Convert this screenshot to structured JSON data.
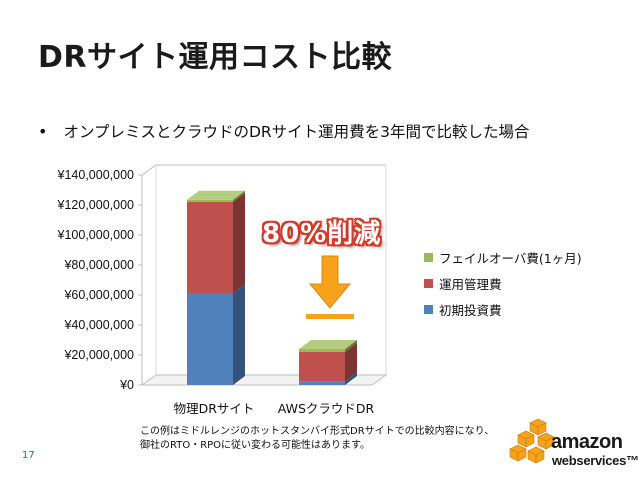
{
  "title": "DRサイト運用コスト比較",
  "bullet": "オンプレミスとクラウドのDRサイト運用費を3年間で比較した場合",
  "callout": "80%削減",
  "footnote": {
    "line1": "この例はミドルレンジのホットスタンバイ形式DRサイトでの比較内容になり、",
    "line2": "御社のRTO・RPOに従い変わる可能性はあります。"
  },
  "page_number": "17",
  "logo": {
    "word1": "amazon",
    "word2": "webservices™"
  },
  "colors": {
    "initial": "#4f81bd",
    "operation": "#c0504d",
    "failover": "#9bbb59",
    "arrow": "#f7a21b"
  },
  "chart_data": {
    "type": "bar",
    "stacked": true,
    "categories": [
      "物理DRサイト",
      "AWSクラウドDR"
    ],
    "series": [
      {
        "name": "初期投資費",
        "values": [
          61000000,
          2500000
        ]
      },
      {
        "name": "運用管理費",
        "values": [
          61000000,
          19500000
        ]
      },
      {
        "name": "フェイルオーバ費(1ヶ月)",
        "values": [
          1500000,
          2000000
        ]
      }
    ],
    "ylim": [
      0,
      140000000
    ],
    "yticks": [
      "¥0",
      "¥20,000,000",
      "¥40,000,000",
      "¥60,000,000",
      "¥80,000,000",
      "¥100,000,000",
      "¥120,000,000",
      "¥140,000,000"
    ],
    "legend_position": "right",
    "legend_entries": [
      "フェイルオーバ費(1ヶ月)",
      "運用管理費",
      "初期投資費"
    ],
    "grid": false
  }
}
